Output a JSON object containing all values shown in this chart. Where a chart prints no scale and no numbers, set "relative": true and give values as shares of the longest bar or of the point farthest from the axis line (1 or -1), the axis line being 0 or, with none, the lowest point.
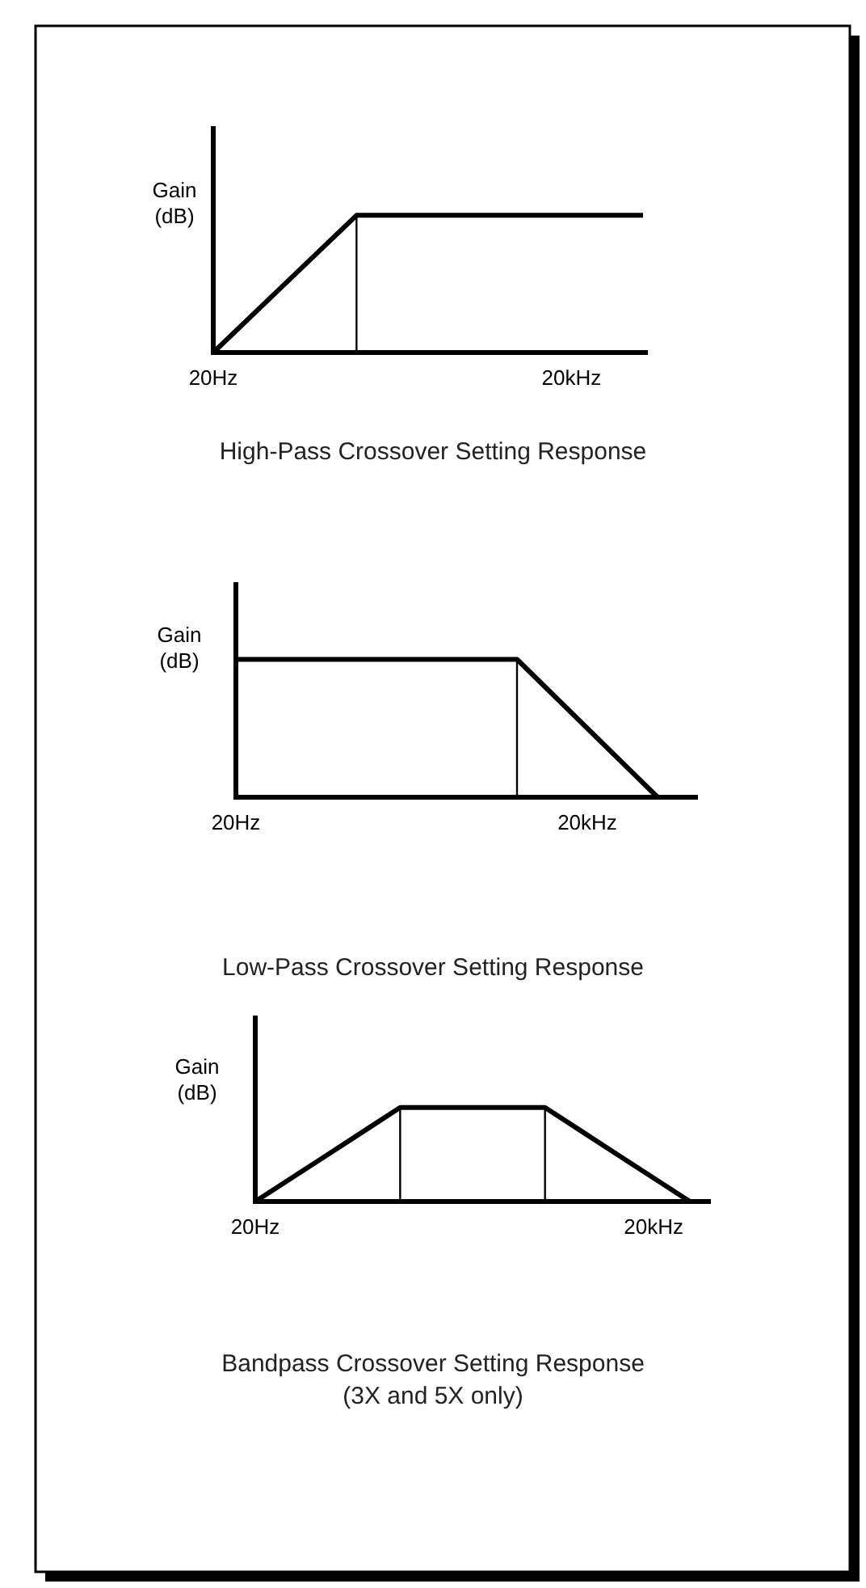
{
  "chart_data": [
    {
      "type": "line",
      "title": "High-Pass Crossover Setting Response",
      "ylabel": "Gain\n(dB)",
      "relative": true,
      "categories": [
        "20Hz",
        null,
        null,
        null,
        null,
        "20kHz",
        null
      ],
      "marker": "none",
      "line_style": "solid",
      "series": [
        {
          "color": "#000000",
          "values": [
            0,
            0.5,
            1,
            1,
            1,
            1,
            1
          ]
        }
      ]
    },
    {
      "type": "line",
      "title": "Low-Pass Crossover Setting Response",
      "ylabel": "Gain\n(dB)",
      "relative": true,
      "categories": [
        "20Hz",
        null,
        null,
        null,
        null,
        "20kHz",
        null
      ],
      "marker": "none",
      "line_style": "solid",
      "series": [
        {
          "color": "#000000",
          "values": [
            1,
            1,
            1,
            1,
            1,
            0.5,
            0
          ]
        }
      ]
    },
    {
      "type": "line",
      "title": "Bandpass Crossover Setting Response",
      "subtitle": "(3X and 5X only)",
      "ylabel": "Gain\n(dB)",
      "relative": true,
      "categories": [
        "20Hz",
        null,
        null,
        null,
        null,
        null,
        null,
        null,
        null,
        null,
        null,
        "20kHz",
        null
      ],
      "marker": "none",
      "line_style": "solid",
      "series": [
        {
          "color": "#000000",
          "values": [
            0,
            0.25,
            0.5,
            0.75,
            1,
            1,
            1,
            1,
            1,
            0.75,
            0.5,
            0.25,
            0
          ]
        }
      ]
    }
  ]
}
